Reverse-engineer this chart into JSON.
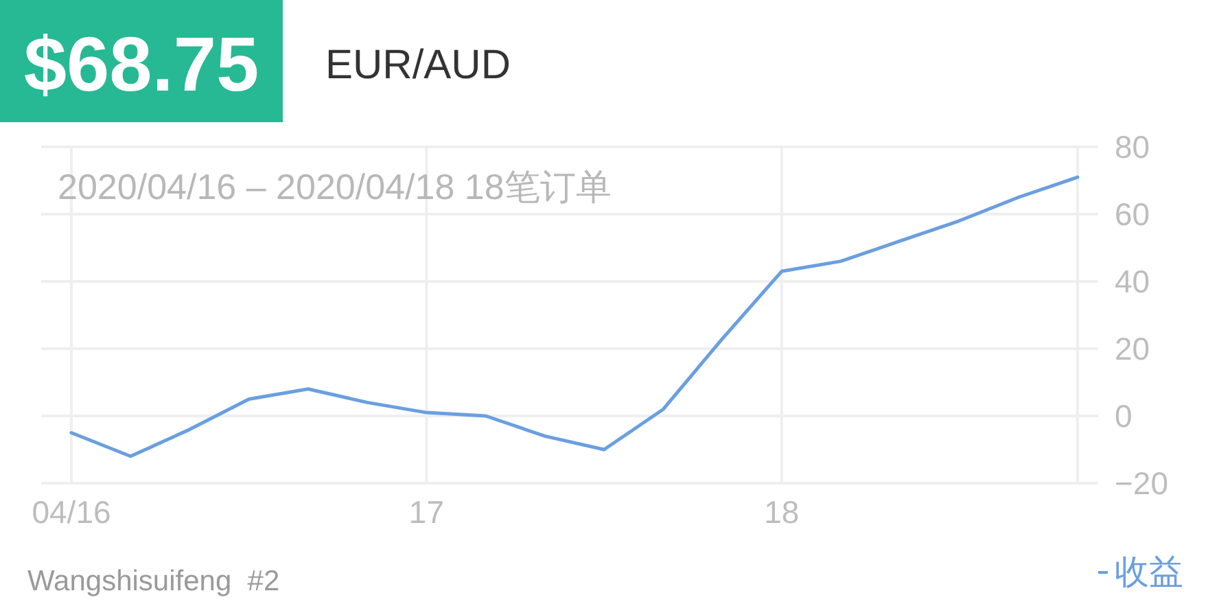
{
  "chart_data": {
    "type": "line",
    "title": "$68.75",
    "subtitle": "EUR/AUD",
    "annotations": [
      "2020/04/16 – 2020/04/18 18笔订单",
      "Wangshisuifeng  #2"
    ],
    "x": [
      "2020-04-16T00:00",
      "2020-04-16T04:00",
      "2020-04-16T08:00",
      "2020-04-16T12:00",
      "2020-04-16T16:00",
      "2020-04-16T20:00",
      "2020-04-17T00:00",
      "2020-04-17T04:00",
      "2020-04-17T08:00",
      "2020-04-17T12:00",
      "2020-04-17T16:00",
      "2020-04-17T20:00",
      "2020-04-18T00:00",
      "2020-04-18T04:00",
      "2020-04-18T08:00",
      "2020-04-18T12:00",
      "2020-04-18T16:00",
      "2020-04-18T20:00"
    ],
    "series": [
      {
        "name": "收益",
        "color": "#6a9fe0",
        "values": [
          -5,
          -12,
          -4,
          5,
          8,
          4,
          1,
          0,
          -6,
          -10,
          2,
          23,
          43,
          46,
          52,
          58,
          65,
          71
        ]
      }
    ],
    "xlim": [
      "2020-04-16T00:00",
      "2020-04-18T20:00"
    ],
    "xticks": [
      {
        "value": "2020-04-16",
        "label": "04/16"
      },
      {
        "value": "2020-04-17",
        "label": "17"
      },
      {
        "value": "2020-04-18",
        "label": "18"
      }
    ],
    "ylim": [
      -20,
      80
    ],
    "yticks": [
      {
        "value": -20,
        "label": "−20"
      },
      0,
      20,
      40,
      60,
      80
    ],
    "grid": true,
    "legend": "bottom right",
    "line_style": "solid"
  }
}
